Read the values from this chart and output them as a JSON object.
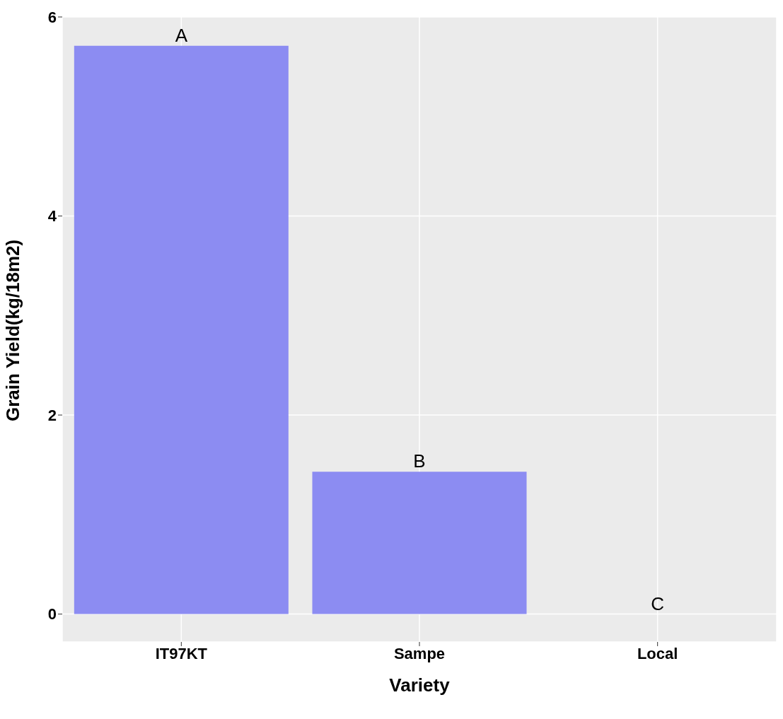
{
  "chart_data": {
    "type": "bar",
    "xlabel": "Variety",
    "ylabel": "Grain Yield(kg/18m2)",
    "categories": [
      "IT97KT",
      "Sampe",
      "Local"
    ],
    "values": [
      5.71,
      1.43,
      0
    ],
    "value_labels": [
      "A",
      "B",
      "C"
    ],
    "color": "#8c8cf2",
    "ylim": [
      -0.28,
      6
    ],
    "yticks": [
      0,
      2,
      4,
      6
    ],
    "grid": true
  }
}
